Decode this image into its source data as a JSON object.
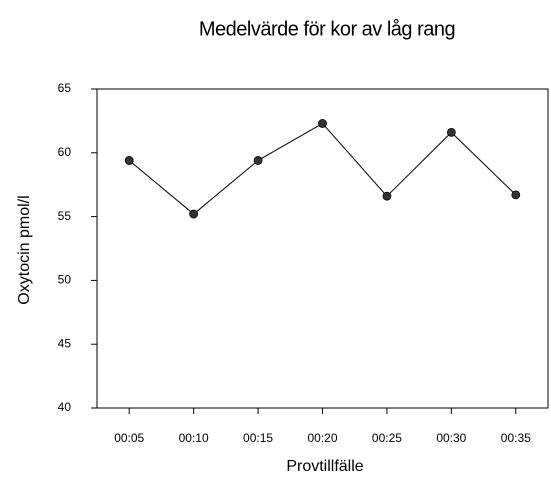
{
  "chart_data": {
    "type": "line",
    "title": "Medelvärde för kor av låg rang",
    "x_label": "Provtillfälle",
    "y_label": "Oxytocin pmol/l",
    "categories": [
      "00:05",
      "00:10",
      "00:15",
      "00:20",
      "00:25",
      "00:30",
      "00:35"
    ],
    "values": [
      59.4,
      55.2,
      59.4,
      62.3,
      56.6,
      61.6,
      56.7
    ],
    "color": "#000000",
    "ylim": [
      40,
      65
    ],
    "yticks": [
      40,
      45,
      50,
      55,
      60,
      65
    ]
  }
}
